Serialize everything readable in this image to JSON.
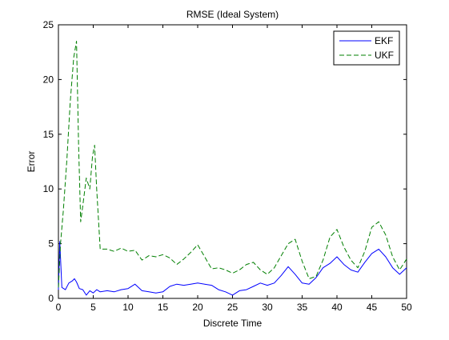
{
  "chart_data": {
    "type": "line",
    "title": "RMSE (Ideal System)",
    "xlabel": "Discrete Time",
    "ylabel": "Error",
    "xlim": [
      0,
      50
    ],
    "ylim": [
      0,
      25
    ],
    "xticks": [
      0,
      5,
      10,
      15,
      20,
      25,
      30,
      35,
      40,
      45,
      50
    ],
    "yticks": [
      0,
      5,
      10,
      15,
      20,
      25
    ],
    "grid": false,
    "legend_position": "top-right",
    "series": [
      {
        "name": "EKF",
        "color": "#0000ff",
        "style": "solid",
        "x": [
          0,
          0.2,
          0.5,
          1,
          1.5,
          2,
          2.3,
          2.6,
          3,
          3.5,
          4,
          4.5,
          5,
          5.5,
          6,
          7,
          8,
          9,
          10,
          11,
          12,
          13,
          14,
          15,
          16,
          17,
          18,
          19,
          20,
          21,
          22,
          23,
          24,
          25,
          26,
          27,
          28,
          29,
          30,
          31,
          32,
          33,
          34,
          35,
          36,
          37,
          38,
          39,
          40,
          41,
          42,
          43,
          44,
          45,
          46,
          47,
          48,
          49,
          50
        ],
        "y": [
          0.8,
          5.2,
          1.0,
          0.8,
          1.4,
          1.6,
          1.8,
          1.5,
          0.9,
          0.8,
          0.3,
          0.7,
          0.5,
          0.8,
          0.6,
          0.7,
          0.6,
          0.8,
          0.9,
          1.3,
          0.7,
          0.6,
          0.5,
          0.6,
          1.1,
          1.3,
          1.2,
          1.3,
          1.4,
          1.3,
          1.2,
          0.8,
          0.6,
          0.3,
          0.7,
          0.8,
          1.1,
          1.4,
          1.2,
          1.4,
          2.1,
          2.9,
          2.2,
          1.4,
          1.3,
          1.9,
          2.8,
          3.2,
          3.8,
          3.1,
          2.6,
          2.4,
          3.3,
          4.1,
          4.5,
          3.8,
          2.8,
          2.2,
          2.8
        ]
      },
      {
        "name": "UKF",
        "color": "#007f00",
        "style": "dashed",
        "x": [
          0,
          0.3,
          0.7,
          1.2,
          1.7,
          2.2,
          2.6,
          2.9,
          3.2,
          3.5,
          4.0,
          4.5,
          4.9,
          5.2,
          5.5,
          6,
          7,
          8,
          9,
          10,
          11,
          12,
          13,
          14,
          15,
          16,
          17,
          18,
          19,
          20,
          21,
          22,
          23,
          24,
          25,
          26,
          27,
          28,
          29,
          30,
          31,
          32,
          33,
          34,
          35,
          36,
          37,
          38,
          39,
          40,
          41,
          42,
          43,
          44,
          45,
          46,
          47,
          48,
          49,
          50
        ],
        "y": [
          1.0,
          5.0,
          8.0,
          12.5,
          18.0,
          22.0,
          23.5,
          14.0,
          7.0,
          8.5,
          11.0,
          10.0,
          13.0,
          14.0,
          10.0,
          4.5,
          4.5,
          4.3,
          4.6,
          4.3,
          4.4,
          3.5,
          3.9,
          3.8,
          4.0,
          3.7,
          3.1,
          3.6,
          4.2,
          4.9,
          3.8,
          2.7,
          2.8,
          2.6,
          2.3,
          2.6,
          3.1,
          3.3,
          2.6,
          2.2,
          2.8,
          3.9,
          5.0,
          5.4,
          3.4,
          1.8,
          2.0,
          3.5,
          5.6,
          6.3,
          4.7,
          3.5,
          2.8,
          4.3,
          6.5,
          7.0,
          5.8,
          3.8,
          2.6,
          3.6
        ]
      }
    ]
  }
}
